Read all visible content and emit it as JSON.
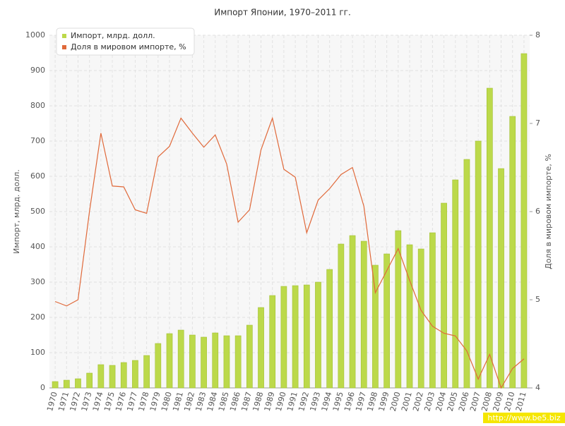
{
  "chart_data": {
    "type": "bar-line",
    "title": "Импорт Японии, 1970–2011 гг.",
    "y_label": "Импорт, млрд. долл.",
    "y2_label": "Доля в мировом импорте, %",
    "categories": [
      "1970",
      "1971",
      "1972",
      "1973",
      "1974",
      "1975",
      "1976",
      "1977",
      "1978",
      "1979",
      "1980",
      "1981",
      "1982",
      "1983",
      "1984",
      "1985",
      "1986",
      "1987",
      "1988",
      "1989",
      "1990",
      "1991",
      "1992",
      "1993",
      "1994",
      "1995",
      "1996",
      "1997",
      "1998",
      "1999",
      "2000",
      "2001",
      "2002",
      "2003",
      "2004",
      "2005",
      "2006",
      "2007",
      "2008",
      "2009",
      "2010",
      "2011"
    ],
    "series": [
      {
        "name": "Импорт, млрд. долл.",
        "color": "#bcd94a",
        "values": [
          18,
          22,
          26,
          42,
          66,
          64,
          72,
          78,
          92,
          126,
          154,
          164,
          150,
          144,
          156,
          148,
          148,
          178,
          228,
          262,
          288,
          290,
          292,
          300,
          336,
          408,
          432,
          416,
          348,
          380,
          446,
          406,
          394,
          440,
          524,
          590,
          648,
          700,
          850,
          622,
          770,
          948
        ]
      },
      {
        "name": "Доля в мировом импорте, %",
        "color": "#e0693a",
        "axis": "y2",
        "values": [
          4.98,
          4.93,
          5.0,
          6.0,
          6.89,
          6.29,
          6.28,
          6.02,
          5.98,
          6.62,
          6.74,
          7.06,
          6.89,
          6.73,
          6.87,
          6.54,
          5.88,
          6.02,
          6.7,
          7.06,
          6.48,
          6.39,
          5.76,
          6.13,
          6.26,
          6.42,
          6.5,
          6.06,
          5.08,
          5.33,
          5.58,
          5.22,
          4.88,
          4.7,
          4.62,
          4.59,
          4.42,
          4.1,
          4.38,
          4.0,
          4.22,
          4.33
        ]
      }
    ],
    "ylim": [
      0,
      1000
    ],
    "yticks": [
      0,
      100,
      200,
      300,
      400,
      500,
      600,
      700,
      800,
      900,
      1000
    ],
    "y2lim": [
      4,
      8
    ],
    "y2ticks": [
      4,
      5,
      6,
      7,
      8
    ],
    "grid": true,
    "legend": "top-left",
    "watermark": "http://www.be5.biz"
  }
}
